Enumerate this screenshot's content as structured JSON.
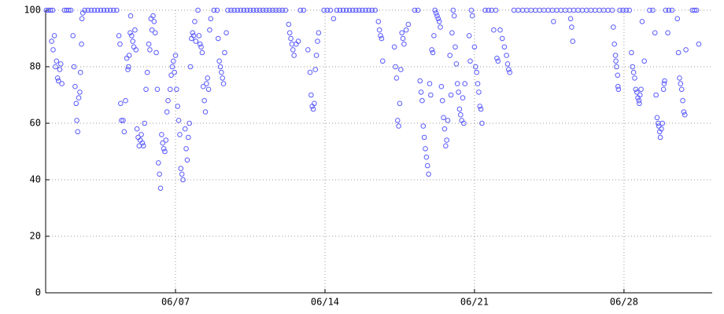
{
  "chart_data": {
    "type": "scatter",
    "color": "#5a5aff",
    "grid": true,
    "xlim": [
      0.92,
      32.13
    ],
    "ylim": [
      0,
      100
    ],
    "xticks": [
      {
        "value": 7,
        "label": "06/07"
      },
      {
        "value": 14,
        "label": "06/14"
      },
      {
        "value": 21,
        "label": "06/21"
      },
      {
        "value": 28,
        "label": "06/28"
      }
    ],
    "yticks": [
      0,
      20,
      40,
      60,
      80,
      100
    ],
    "x": [
      0.95,
      1.05,
      1.15,
      1.25,
      1.2,
      1.27,
      1.33,
      1.38,
      1.43,
      1.48,
      1.52,
      1.58,
      1.63,
      1.68,
      1.8,
      1.9,
      2.0,
      2.1,
      2.2,
      2.25,
      2.3,
      2.35,
      2.38,
      2.42,
      2.47,
      2.52,
      2.55,
      2.6,
      2.62,
      2.66,
      2.75,
      2.9,
      3.05,
      3.2,
      3.35,
      3.5,
      3.65,
      3.8,
      3.95,
      4.1,
      4.25,
      4.35,
      4.4,
      4.43,
      4.47,
      4.55,
      4.6,
      4.66,
      4.72,
      4.77,
      4.8,
      4.83,
      4.88,
      4.9,
      4.95,
      5.0,
      5.05,
      5.1,
      5.15,
      5.2,
      5.25,
      5.3,
      5.35,
      5.4,
      5.45,
      5.5,
      5.55,
      5.62,
      5.68,
      5.75,
      5.8,
      5.85,
      5.9,
      5.95,
      6.0,
      6.05,
      6.1,
      6.15,
      6.2,
      6.25,
      6.3,
      6.35,
      6.4,
      6.45,
      6.5,
      6.55,
      6.6,
      6.65,
      6.75,
      6.8,
      6.85,
      6.9,
      6.95,
      7.0,
      7.05,
      7.1,
      7.15,
      7.2,
      7.25,
      7.3,
      7.35,
      7.45,
      7.5,
      7.55,
      7.6,
      7.65,
      7.7,
      7.75,
      7.8,
      7.85,
      7.9,
      7.95,
      8.05,
      8.1,
      8.15,
      8.2,
      8.25,
      8.3,
      8.35,
      8.4,
      8.45,
      8.5,
      8.55,
      8.6,
      8.65,
      9.0,
      9.05,
      9.1,
      9.15,
      9.2,
      9.25,
      9.3,
      9.38,
      8.8,
      8.95,
      9.45,
      9.6,
      9.75,
      9.9,
      10.05,
      10.2,
      10.35,
      10.5,
      10.65,
      10.8,
      10.95,
      11.1,
      11.25,
      11.4,
      11.55,
      11.7,
      11.85,
      12.0,
      12.15,
      12.3,
      12.35,
      12.4,
      12.45,
      12.5,
      12.55,
      12.65,
      12.75,
      13.2,
      13.3,
      13.35,
      13.4,
      13.45,
      13.5,
      13.55,
      13.6,
      13.65,
      13.7,
      12.85,
      13.0,
      13.95,
      14.1,
      14.25,
      14.4,
      14.55,
      14.7,
      14.85,
      15.0,
      15.15,
      15.3,
      15.45,
      15.6,
      15.75,
      15.9,
      16.05,
      16.2,
      16.35,
      16.5,
      16.55,
      16.6,
      16.65,
      16.7,
      17.25,
      17.3,
      17.35,
      17.4,
      17.45,
      17.5,
      17.55,
      17.6,
      17.65,
      17.7,
      17.8,
      17.9,
      18.2,
      18.35,
      18.45,
      18.5,
      18.55,
      18.6,
      18.65,
      18.7,
      18.75,
      18.8,
      18.85,
      18.9,
      18.95,
      19.0,
      19.05,
      19.1,
      19.15,
      19.2,
      19.25,
      19.3,
      19.35,
      19.4,
      19.45,
      19.5,
      19.55,
      19.6,
      19.65,
      19.7,
      19.75,
      19.85,
      19.9,
      19.95,
      20.0,
      20.05,
      20.1,
      20.15,
      20.2,
      20.25,
      20.3,
      20.35,
      20.4,
      20.45,
      20.5,
      20.55,
      20.75,
      20.8,
      20.85,
      20.9,
      21.0,
      21.05,
      21.1,
      21.15,
      21.2,
      21.25,
      21.3,
      21.35,
      21.5,
      21.65,
      21.8,
      22.0,
      21.9,
      22.05,
      22.1,
      22.2,
      22.3,
      22.4,
      22.5,
      22.55,
      22.6,
      22.65,
      22.85,
      23.05,
      23.25,
      23.45,
      23.65,
      23.85,
      24.05,
      24.25,
      24.45,
      24.65,
      24.85,
      25.05,
      25.25,
      25.45,
      25.65,
      25.85,
      26.05,
      26.25,
      26.45,
      26.65,
      26.85,
      27.05,
      27.25,
      27.45,
      24.7,
      25.5,
      25.55,
      25.6,
      27.5,
      27.55,
      27.6,
      27.62,
      27.65,
      27.7,
      27.72,
      27.74,
      27.8,
      27.95,
      28.1,
      28.25,
      28.35,
      28.4,
      28.45,
      28.5,
      28.55,
      28.6,
      28.65,
      28.7,
      28.72,
      28.75,
      28.8,
      28.85,
      28.95,
      29.2,
      29.35,
      29.45,
      29.5,
      29.55,
      29.6,
      29.63,
      29.67,
      29.7,
      29.75,
      29.8,
      29.85,
      29.88,
      29.9,
      29.95,
      30.05,
      30.1,
      30.25,
      30.5,
      30.55,
      30.6,
      30.65,
      30.7,
      30.75,
      30.8,
      30.85,
      30.9,
      31.2,
      31.3,
      31.4,
      31.5
    ],
    "values": [
      100,
      100,
      100,
      100,
      89,
      86,
      91,
      80,
      82,
      76,
      75,
      79,
      81,
      74,
      100,
      100,
      100,
      100,
      91,
      80,
      73,
      67,
      61,
      57,
      69,
      71,
      78,
      88,
      97,
      99,
      100,
      100,
      100,
      100,
      100,
      100,
      100,
      100,
      100,
      100,
      100,
      91,
      88,
      67,
      61,
      61,
      57,
      68,
      83,
      79,
      80,
      84,
      92,
      98,
      91,
      89,
      87,
      93,
      86,
      58,
      55,
      52,
      54,
      56,
      53,
      52,
      60,
      72,
      78,
      88,
      86,
      97,
      93,
      98,
      96,
      92,
      85,
      72,
      46,
      42,
      37,
      56,
      53,
      51,
      50,
      54,
      64,
      68,
      72,
      77,
      80,
      82,
      78,
      84,
      72,
      66,
      61,
      56,
      44,
      42,
      40,
      58,
      51,
      47,
      55,
      60,
      80,
      90,
      92,
      91,
      96,
      89,
      100,
      91,
      88,
      87,
      85,
      73,
      68,
      64,
      74,
      76,
      72,
      93,
      97,
      90,
      82,
      80,
      78,
      76,
      74,
      85,
      92,
      100,
      100,
      100,
      100,
      100,
      100,
      100,
      100,
      100,
      100,
      100,
      100,
      100,
      100,
      100,
      100,
      100,
      100,
      100,
      100,
      100,
      95,
      92,
      90,
      88,
      86,
      84,
      88,
      89,
      86,
      78,
      70,
      66,
      65,
      67,
      79,
      84,
      89,
      92,
      100,
      100,
      100,
      100,
      100,
      97,
      100,
      100,
      100,
      100,
      100,
      100,
      100,
      100,
      100,
      100,
      100,
      100,
      100,
      96,
      93,
      91,
      90,
      82,
      87,
      80,
      76,
      61,
      59,
      67,
      79,
      92,
      90,
      88,
      93,
      95,
      100,
      100,
      75,
      71,
      68,
      59,
      55,
      51,
      48,
      45,
      42,
      74,
      70,
      86,
      85,
      91,
      100,
      99,
      98,
      97,
      96,
      94,
      73,
      68,
      62,
      58,
      52,
      54,
      61,
      84,
      70,
      92,
      100,
      98,
      87,
      81,
      74,
      71,
      65,
      63,
      61,
      69,
      60,
      74,
      91,
      82,
      100,
      98,
      87,
      80,
      78,
      74,
      71,
      66,
      65,
      60,
      100,
      100,
      100,
      100,
      93,
      83,
      82,
      93,
      90,
      87,
      84,
      81,
      79,
      78,
      100,
      100,
      100,
      100,
      100,
      100,
      100,
      100,
      100,
      100,
      100,
      100,
      100,
      100,
      100,
      100,
      100,
      100,
      100,
      100,
      100,
      100,
      100,
      100,
      96,
      97,
      94,
      89,
      94,
      88,
      84,
      82,
      80,
      77,
      73,
      72,
      100,
      100,
      100,
      100,
      85,
      80,
      78,
      76,
      72,
      71,
      69,
      68,
      67,
      70,
      72,
      96,
      82,
      100,
      100,
      92,
      70,
      62,
      60,
      59,
      57,
      55,
      58,
      60,
      72,
      74,
      75,
      100,
      92,
      100,
      100,
      97,
      85,
      76,
      74,
      72,
      68,
      64,
      63,
      86,
      100,
      100,
      100,
      88
    ]
  }
}
